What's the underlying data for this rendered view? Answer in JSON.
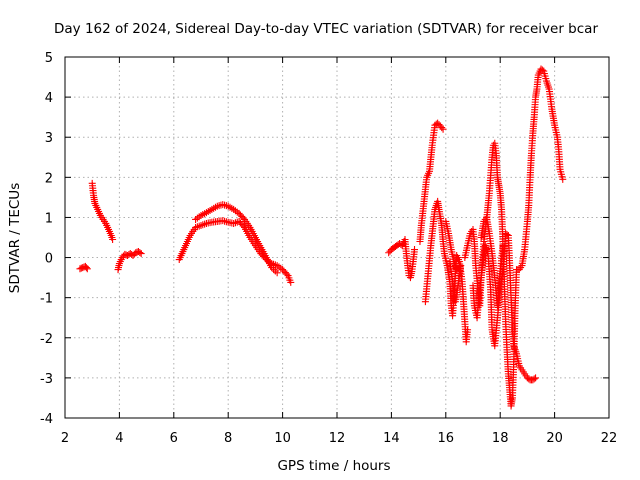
{
  "chart_data": {
    "type": "scatter",
    "title": "Day 162 of 2024, Sidereal Day-to-day VTEC variation (SDTVAR) for receiver bcar",
    "xlabel": "GPS time / hours",
    "ylabel": "SDTVAR / TECUs",
    "xlim": [
      2,
      22
    ],
    "ylim": [
      -4,
      5
    ],
    "xticks": [
      "2",
      "4",
      "6",
      "8",
      "10",
      "12",
      "14",
      "16",
      "18",
      "20",
      "22"
    ],
    "yticks": [
      "-4",
      "-3",
      "-2",
      "-1",
      "0",
      "1",
      "2",
      "3",
      "4",
      "5"
    ],
    "grid": true,
    "marker": "+",
    "color": "#ff0000",
    "series": [
      {
        "name": "SDTVAR",
        "segments": [
          [
            [
              2.55,
              -0.28
            ],
            [
              2.65,
              -0.25
            ],
            [
              2.75,
              -0.22
            ],
            [
              2.82,
              -0.28
            ]
          ],
          [
            [
              3.0,
              1.85
            ],
            [
              3.05,
              1.55
            ],
            [
              3.1,
              1.35
            ],
            [
              3.2,
              1.2
            ],
            [
              3.3,
              1.05
            ],
            [
              3.4,
              0.95
            ],
            [
              3.5,
              0.85
            ],
            [
              3.6,
              0.7
            ],
            [
              3.7,
              0.55
            ],
            [
              3.75,
              0.45
            ]
          ],
          [
            [
              3.95,
              -0.3
            ],
            [
              4.0,
              -0.15
            ],
            [
              4.1,
              0.0
            ],
            [
              4.2,
              0.08
            ],
            [
              4.3,
              0.05
            ],
            [
              4.4,
              0.1
            ],
            [
              4.5,
              0.05
            ],
            [
              4.6,
              0.12
            ],
            [
              4.7,
              0.15
            ],
            [
              4.8,
              0.1
            ]
          ],
          [
            [
              6.2,
              -0.05
            ],
            [
              6.3,
              0.1
            ],
            [
              6.4,
              0.25
            ],
            [
              6.5,
              0.4
            ],
            [
              6.6,
              0.55
            ],
            [
              6.7,
              0.65
            ],
            [
              6.8,
              0.75
            ],
            [
              7.0,
              0.8
            ],
            [
              7.2,
              0.85
            ],
            [
              7.4,
              0.88
            ],
            [
              7.6,
              0.9
            ],
            [
              7.8,
              0.92
            ],
            [
              8.0,
              0.88
            ],
            [
              8.2,
              0.85
            ],
            [
              8.4,
              0.9
            ],
            [
              8.6,
              0.75
            ],
            [
              8.8,
              0.5
            ],
            [
              9.0,
              0.3
            ],
            [
              9.2,
              0.1
            ],
            [
              9.4,
              -0.05
            ],
            [
              9.6,
              -0.15
            ],
            [
              9.8,
              -0.2
            ],
            [
              10.0,
              -0.3
            ],
            [
              10.2,
              -0.45
            ],
            [
              10.3,
              -0.62
            ]
          ],
          [
            [
              6.8,
              0.95
            ],
            [
              7.0,
              1.05
            ],
            [
              7.2,
              1.12
            ],
            [
              7.4,
              1.2
            ],
            [
              7.6,
              1.28
            ],
            [
              7.8,
              1.32
            ],
            [
              8.0,
              1.28
            ],
            [
              8.2,
              1.2
            ],
            [
              8.4,
              1.1
            ],
            [
              8.6,
              0.95
            ],
            [
              8.8,
              0.75
            ],
            [
              9.0,
              0.5
            ],
            [
              9.2,
              0.25
            ],
            [
              9.4,
              0.0
            ],
            [
              9.6,
              -0.25
            ],
            [
              9.8,
              -0.38
            ]
          ],
          [
            [
              13.9,
              0.12
            ],
            [
              14.0,
              0.2
            ],
            [
              14.1,
              0.25
            ],
            [
              14.2,
              0.3
            ],
            [
              14.3,
              0.35
            ],
            [
              14.4,
              0.3
            ],
            [
              14.5,
              0.45
            ],
            [
              14.55,
              0.1
            ],
            [
              14.6,
              -0.2
            ],
            [
              14.65,
              -0.45
            ],
            [
              14.7,
              -0.5
            ],
            [
              14.75,
              -0.35
            ],
            [
              14.8,
              -0.1
            ],
            [
              14.85,
              0.2
            ]
          ],
          [
            [
              15.05,
              0.4
            ],
            [
              15.1,
              0.8
            ],
            [
              15.2,
              1.4
            ],
            [
              15.3,
              2.0
            ],
            [
              15.4,
              2.15
            ],
            [
              15.5,
              2.8
            ],
            [
              15.6,
              3.3
            ],
            [
              15.7,
              3.35
            ],
            [
              15.8,
              3.28
            ],
            [
              15.9,
              3.2
            ]
          ],
          [
            [
              15.25,
              -1.1
            ],
            [
              15.35,
              -0.4
            ],
            [
              15.45,
              0.3
            ],
            [
              15.55,
              0.9
            ],
            [
              15.6,
              1.2
            ],
            [
              15.7,
              1.4
            ],
            [
              15.75,
              1.2
            ],
            [
              15.85,
              0.8
            ],
            [
              15.9,
              0.4
            ],
            [
              15.95,
              0.1
            ],
            [
              16.05,
              -0.2
            ],
            [
              16.15,
              -0.6
            ],
            [
              16.2,
              -1.2
            ],
            [
              16.25,
              -1.45
            ],
            [
              16.3,
              -1.0
            ],
            [
              16.35,
              -0.4
            ],
            [
              16.4,
              0.05
            ],
            [
              16.5,
              -0.1
            ],
            [
              16.6,
              -0.6
            ],
            [
              16.7,
              -1.6
            ],
            [
              16.75,
              -2.1
            ],
            [
              16.8,
              -1.8
            ]
          ],
          [
            [
              16.0,
              0.9
            ],
            [
              16.1,
              0.6
            ],
            [
              16.2,
              0.2
            ],
            [
              16.3,
              -0.1
            ],
            [
              16.4,
              -0.3
            ]
          ],
          [
            [
              16.7,
              0.0
            ],
            [
              16.8,
              0.3
            ],
            [
              16.9,
              0.6
            ],
            [
              17.0,
              0.7
            ],
            [
              17.05,
              0.4
            ],
            [
              17.1,
              -0.2
            ],
            [
              17.2,
              -0.9
            ],
            [
              17.25,
              -1.2
            ],
            [
              17.3,
              -0.5
            ],
            [
              17.4,
              0.4
            ],
            [
              17.5,
              0.95
            ],
            [
              17.6,
              1.6
            ],
            [
              17.7,
              2.5
            ],
            [
              17.75,
              2.8
            ],
            [
              17.8,
              2.85
            ],
            [
              17.85,
              2.6
            ],
            [
              17.9,
              2.0
            ],
            [
              17.95,
              1.8
            ],
            [
              18.0,
              1.6
            ],
            [
              18.05,
              1.2
            ],
            [
              18.1,
              0.4
            ],
            [
              18.15,
              -0.6
            ],
            [
              18.2,
              -1.6
            ],
            [
              18.25,
              -2.3
            ],
            [
              18.3,
              -2.9
            ],
            [
              18.35,
              -3.3
            ],
            [
              18.4,
              -3.7
            ],
            [
              18.45,
              -3.5
            ],
            [
              18.5,
              -2.6
            ],
            [
              18.55,
              -1.2
            ],
            [
              18.6,
              -0.3
            ],
            [
              18.7,
              -0.3
            ],
            [
              18.8,
              -0.2
            ],
            [
              18.9,
              0.2
            ],
            [
              19.0,
              0.9
            ],
            [
              19.05,
              1.3
            ],
            [
              19.1,
              2.0
            ],
            [
              19.15,
              2.6
            ],
            [
              19.2,
              3.1
            ],
            [
              19.25,
              3.5
            ],
            [
              19.3,
              4.0
            ],
            [
              19.35,
              4.2
            ],
            [
              19.4,
              4.55
            ],
            [
              19.5,
              4.7
            ],
            [
              19.6,
              4.65
            ],
            [
              19.7,
              4.4
            ],
            [
              19.8,
              4.2
            ],
            [
              19.9,
              3.7
            ],
            [
              20.0,
              3.3
            ],
            [
              20.1,
              3.0
            ],
            [
              20.15,
              2.7
            ],
            [
              20.2,
              2.2
            ],
            [
              20.3,
              1.95
            ]
          ],
          [
            [
              17.0,
              -0.7
            ],
            [
              17.05,
              -1.2
            ],
            [
              17.15,
              -1.5
            ],
            [
              17.25,
              -0.8
            ],
            [
              17.35,
              -0.2
            ],
            [
              17.45,
              0.3
            ],
            [
              17.55,
              0.1
            ],
            [
              17.65,
              -0.8
            ],
            [
              17.7,
              -1.8
            ],
            [
              17.8,
              -2.2
            ],
            [
              17.9,
              -1.5
            ],
            [
              18.0,
              -0.8
            ],
            [
              18.1,
              -0.3
            ],
            [
              18.2,
              0.6
            ],
            [
              18.3,
              0.55
            ],
            [
              18.35,
              -0.2
            ],
            [
              18.4,
              -1.0
            ],
            [
              18.45,
              -1.8
            ],
            [
              18.5,
              -2.2
            ],
            [
              18.6,
              -2.4
            ],
            [
              18.7,
              -2.7
            ],
            [
              18.8,
              -2.8
            ],
            [
              18.9,
              -2.9
            ],
            [
              19.0,
              -3.0
            ],
            [
              19.1,
              -3.05
            ],
            [
              19.2,
              -3.05
            ],
            [
              19.3,
              -3.0
            ]
          ],
          [
            [
              16.15,
              -0.1
            ],
            [
              16.25,
              -0.6
            ],
            [
              16.35,
              -1.1
            ],
            [
              16.45,
              -0.7
            ],
            [
              16.55,
              -0.2
            ]
          ],
          [
            [
              17.3,
              0.5
            ],
            [
              17.4,
              0.9
            ],
            [
              17.5,
              1.0
            ],
            [
              17.6,
              0.6
            ],
            [
              17.7,
              0.1
            ],
            [
              17.8,
              -0.5
            ],
            [
              17.9,
              -1.2
            ],
            [
              18.0,
              -0.4
            ],
            [
              18.1,
              0.3
            ]
          ]
        ]
      }
    ]
  }
}
